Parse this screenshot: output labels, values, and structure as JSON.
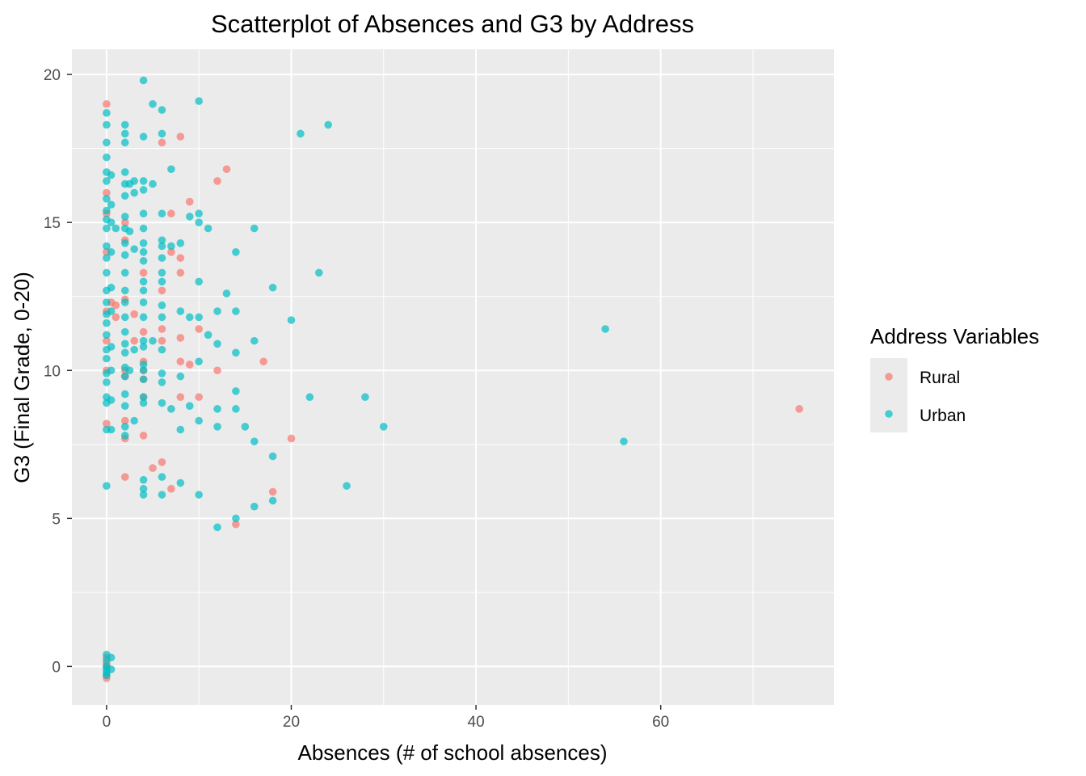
{
  "chart_data": {
    "type": "scatter",
    "title": "Scatterplot of Absences and G3 by Address",
    "xlabel": "Absences (# of school absences)",
    "ylabel": "G3 (Final Grade, 0-20)",
    "xlim": [
      -3.75,
      78.75
    ],
    "ylim": [
      -1.3,
      20.85
    ],
    "x_ticks": [
      0,
      20,
      40,
      60
    ],
    "y_ticks": [
      0,
      5,
      10,
      15,
      20
    ],
    "x_tick_labels": [
      "0",
      "20",
      "40",
      "60"
    ],
    "y_tick_labels": [
      "0",
      "5",
      "10",
      "15",
      "20"
    ],
    "grid": true,
    "legend": {
      "title": "Address Variables",
      "position": "right",
      "entries": [
        "Rural",
        "Urban"
      ]
    },
    "series": [
      {
        "name": "Rural",
        "color": "#F8766D",
        "points": [
          [
            0,
            19.0
          ],
          [
            0,
            16.0
          ],
          [
            0,
            15.3
          ],
          [
            0,
            14.0
          ],
          [
            0,
            12.0
          ],
          [
            0,
            11.0
          ],
          [
            0,
            10.0
          ],
          [
            0,
            8.2
          ],
          [
            0,
            0.3
          ],
          [
            0,
            0.0
          ],
          [
            0,
            -0.3
          ],
          [
            0,
            0.1
          ],
          [
            0,
            -0.4
          ],
          [
            0.5,
            12.3
          ],
          [
            1,
            12.2
          ],
          [
            1,
            11.8
          ],
          [
            2,
            15.0
          ],
          [
            2,
            14.4
          ],
          [
            2,
            12.4
          ],
          [
            2,
            10.0
          ],
          [
            2,
            9.8
          ],
          [
            2,
            8.3
          ],
          [
            2,
            7.7
          ],
          [
            2,
            6.4
          ],
          [
            3,
            11.9
          ],
          [
            3,
            11.0
          ],
          [
            4,
            13.3
          ],
          [
            4,
            11.3
          ],
          [
            4,
            10.3
          ],
          [
            4,
            10.0
          ],
          [
            4,
            9.7
          ],
          [
            4,
            9.1
          ],
          [
            4,
            7.8
          ],
          [
            5,
            6.7
          ],
          [
            6,
            17.7
          ],
          [
            6,
            12.7
          ],
          [
            6,
            11.4
          ],
          [
            6,
            11.0
          ],
          [
            6,
            6.9
          ],
          [
            7,
            15.3
          ],
          [
            7,
            14.0
          ],
          [
            7,
            6.0
          ],
          [
            8,
            17.9
          ],
          [
            8,
            13.8
          ],
          [
            8,
            13.3
          ],
          [
            8,
            11.1
          ],
          [
            8,
            10.3
          ],
          [
            8,
            9.1
          ],
          [
            9,
            15.7
          ],
          [
            9,
            10.2
          ],
          [
            10,
            11.4
          ],
          [
            10,
            9.1
          ],
          [
            12,
            16.4
          ],
          [
            12,
            10.0
          ],
          [
            13,
            16.8
          ],
          [
            14,
            4.8
          ],
          [
            17,
            10.3
          ],
          [
            18,
            5.9
          ],
          [
            20,
            7.7
          ],
          [
            75,
            8.7
          ]
        ]
      },
      {
        "name": "Urban",
        "color": "#00BFC4",
        "points": [
          [
            0,
            18.7
          ],
          [
            0,
            18.3
          ],
          [
            0,
            17.7
          ],
          [
            0,
            17.2
          ],
          [
            0,
            16.7
          ],
          [
            0,
            16.4
          ],
          [
            0,
            15.8
          ],
          [
            0,
            15.4
          ],
          [
            0,
            15.1
          ],
          [
            0,
            14.8
          ],
          [
            0,
            14.2
          ],
          [
            0,
            13.8
          ],
          [
            0,
            13.3
          ],
          [
            0,
            12.7
          ],
          [
            0,
            12.3
          ],
          [
            0,
            11.9
          ],
          [
            0,
            11.6
          ],
          [
            0,
            11.2
          ],
          [
            0,
            10.7
          ],
          [
            0,
            10.4
          ],
          [
            0,
            9.9
          ],
          [
            0,
            9.6
          ],
          [
            0,
            9.1
          ],
          [
            0,
            8.9
          ],
          [
            0,
            8.0
          ],
          [
            0,
            6.1
          ],
          [
            0,
            0.4
          ],
          [
            0,
            0.2
          ],
          [
            0,
            -0.2
          ],
          [
            0,
            0.0
          ],
          [
            0,
            -0.3
          ],
          [
            0,
            -0.1
          ],
          [
            0.5,
            16.6
          ],
          [
            0.5,
            15.6
          ],
          [
            0.5,
            15.0
          ],
          [
            0.5,
            14.0
          ],
          [
            0.5,
            12.8
          ],
          [
            0.5,
            12.0
          ],
          [
            0.5,
            10.8
          ],
          [
            0.5,
            10.0
          ],
          [
            0.5,
            9.0
          ],
          [
            0.5,
            8.0
          ],
          [
            0.5,
            0.3
          ],
          [
            0.5,
            -0.1
          ],
          [
            1,
            14.8
          ],
          [
            2,
            18.3
          ],
          [
            2,
            18.0
          ],
          [
            2,
            17.7
          ],
          [
            2,
            16.7
          ],
          [
            2,
            16.3
          ],
          [
            2,
            15.9
          ],
          [
            2,
            15.2
          ],
          [
            2,
            14.8
          ],
          [
            2,
            14.3
          ],
          [
            2,
            13.9
          ],
          [
            2,
            13.3
          ],
          [
            2,
            12.7
          ],
          [
            2,
            12.3
          ],
          [
            2,
            11.8
          ],
          [
            2,
            11.3
          ],
          [
            2,
            10.9
          ],
          [
            2,
            10.6
          ],
          [
            2,
            10.1
          ],
          [
            2,
            9.8
          ],
          [
            2,
            9.2
          ],
          [
            2,
            8.8
          ],
          [
            2,
            8.1
          ],
          [
            2,
            7.8
          ],
          [
            2.5,
            16.3
          ],
          [
            2.5,
            14.7
          ],
          [
            2.5,
            10.0
          ],
          [
            3,
            16.4
          ],
          [
            3,
            16.0
          ],
          [
            3,
            14.1
          ],
          [
            3,
            10.7
          ],
          [
            3,
            8.3
          ],
          [
            4,
            19.8
          ],
          [
            4,
            17.9
          ],
          [
            4,
            16.4
          ],
          [
            4,
            16.1
          ],
          [
            4,
            15.3
          ],
          [
            4,
            14.8
          ],
          [
            4,
            14.3
          ],
          [
            4,
            14.0
          ],
          [
            4,
            13.7
          ],
          [
            4,
            13.0
          ],
          [
            4,
            12.7
          ],
          [
            4,
            12.3
          ],
          [
            4,
            11.8
          ],
          [
            4,
            11.0
          ],
          [
            4,
            10.8
          ],
          [
            4,
            10.2
          ],
          [
            4,
            10.0
          ],
          [
            4,
            9.7
          ],
          [
            4,
            9.1
          ],
          [
            4,
            8.9
          ],
          [
            4,
            6.3
          ],
          [
            4,
            6.0
          ],
          [
            4,
            5.8
          ],
          [
            5,
            19.0
          ],
          [
            5,
            16.3
          ],
          [
            5,
            11.0
          ],
          [
            6,
            18.8
          ],
          [
            6,
            18.0
          ],
          [
            6,
            15.3
          ],
          [
            6,
            14.4
          ],
          [
            6,
            14.2
          ],
          [
            6,
            13.8
          ],
          [
            6,
            13.3
          ],
          [
            6,
            13.0
          ],
          [
            6,
            12.2
          ],
          [
            6,
            11.8
          ],
          [
            6,
            10.7
          ],
          [
            6,
            9.9
          ],
          [
            6,
            9.6
          ],
          [
            6,
            8.9
          ],
          [
            6,
            6.4
          ],
          [
            6,
            5.8
          ],
          [
            7,
            16.8
          ],
          [
            7,
            14.2
          ],
          [
            7,
            8.7
          ],
          [
            8,
            14.3
          ],
          [
            8,
            12.0
          ],
          [
            8,
            9.8
          ],
          [
            8,
            8.0
          ],
          [
            8,
            6.2
          ],
          [
            9,
            15.2
          ],
          [
            9,
            11.8
          ],
          [
            9,
            8.8
          ],
          [
            10,
            19.1
          ],
          [
            10,
            15.3
          ],
          [
            10,
            15.0
          ],
          [
            10,
            13.0
          ],
          [
            10,
            11.8
          ],
          [
            10,
            10.3
          ],
          [
            10,
            8.3
          ],
          [
            10,
            5.8
          ],
          [
            11,
            14.8
          ],
          [
            11,
            11.2
          ],
          [
            12,
            12.0
          ],
          [
            12,
            10.9
          ],
          [
            12,
            8.7
          ],
          [
            12,
            8.1
          ],
          [
            12,
            4.7
          ],
          [
            13,
            12.6
          ],
          [
            14,
            14.0
          ],
          [
            14,
            12.0
          ],
          [
            14,
            10.6
          ],
          [
            14,
            9.3
          ],
          [
            14,
            8.7
          ],
          [
            14,
            5.0
          ],
          [
            15,
            8.1
          ],
          [
            16,
            14.8
          ],
          [
            16,
            11.0
          ],
          [
            16,
            7.6
          ],
          [
            16,
            5.4
          ],
          [
            18,
            12.8
          ],
          [
            18,
            7.1
          ],
          [
            18,
            5.6
          ],
          [
            20,
            11.7
          ],
          [
            21,
            18.0
          ],
          [
            22,
            9.1
          ],
          [
            23,
            13.3
          ],
          [
            24,
            18.3
          ],
          [
            26,
            6.1
          ],
          [
            28,
            9.1
          ],
          [
            30,
            8.1
          ],
          [
            54,
            11.4
          ],
          [
            56,
            7.6
          ]
        ]
      }
    ]
  }
}
